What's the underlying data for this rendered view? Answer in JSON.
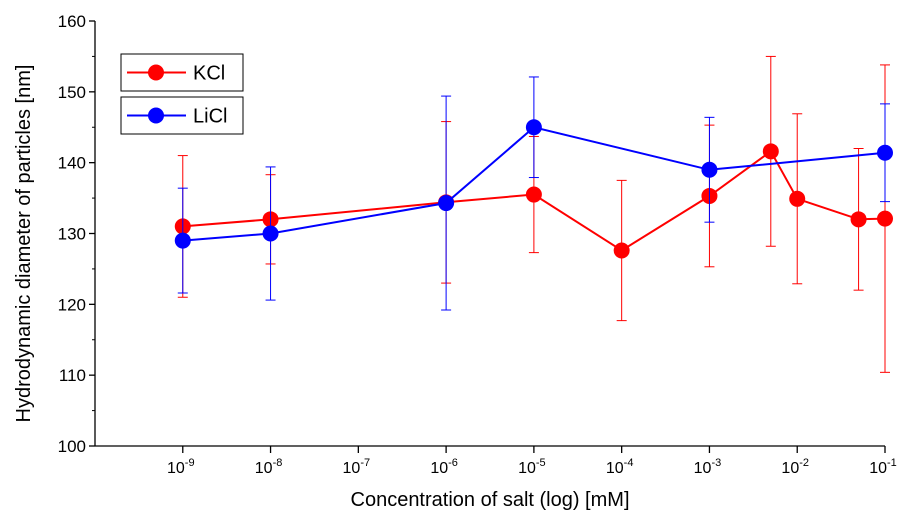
{
  "chart_data": {
    "type": "line",
    "title": "",
    "xlabel": "Concentration of salt (log) [mM]",
    "ylabel": "Hydrodynamic diameter of particles [nm]",
    "x_scale": "log",
    "xlim": [
      1e-10,
      0.1
    ],
    "ylim": [
      100,
      160
    ],
    "y_ticks": [
      100,
      110,
      120,
      130,
      140,
      150,
      160
    ],
    "x_ticks": [
      {
        "value": 1e-09,
        "base": "10",
        "exp": "-9"
      },
      {
        "value": 1e-08,
        "base": "10",
        "exp": "-8"
      },
      {
        "value": 1e-07,
        "base": "10",
        "exp": "-7"
      },
      {
        "value": 1e-06,
        "base": "10",
        "exp": "-6"
      },
      {
        "value": 1e-05,
        "base": "10",
        "exp": "-5"
      },
      {
        "value": 0.0001,
        "base": "10",
        "exp": "-4"
      },
      {
        "value": 0.001,
        "base": "10",
        "exp": "-3"
      },
      {
        "value": 0.01,
        "base": "10",
        "exp": "-2"
      },
      {
        "value": 0.1,
        "base": "10",
        "exp": "-1"
      }
    ],
    "grid": false,
    "legend_position": "top-left",
    "series": [
      {
        "name": "KCl",
        "color": "#ff0000",
        "x": [
          1e-09,
          1e-08,
          1e-06,
          1e-05,
          0.0001,
          0.001,
          0.005,
          0.01,
          0.05,
          0.1
        ],
        "y": [
          131.0,
          132.0,
          134.4,
          135.5,
          127.6,
          135.3,
          141.6,
          134.9,
          132.0,
          132.1
        ],
        "err": [
          10.0,
          6.3,
          11.4,
          8.2,
          9.9,
          10.0,
          13.4,
          12.0,
          10.0,
          21.7
        ]
      },
      {
        "name": "LiCl",
        "color": "#0000ff",
        "x": [
          1e-09,
          1e-08,
          1e-06,
          1e-05,
          0.001,
          0.1
        ],
        "y": [
          129.0,
          130.0,
          134.3,
          145.0,
          139.0,
          141.4
        ],
        "err": [
          7.4,
          9.4,
          15.1,
          7.1,
          7.4,
          6.9
        ]
      }
    ]
  }
}
